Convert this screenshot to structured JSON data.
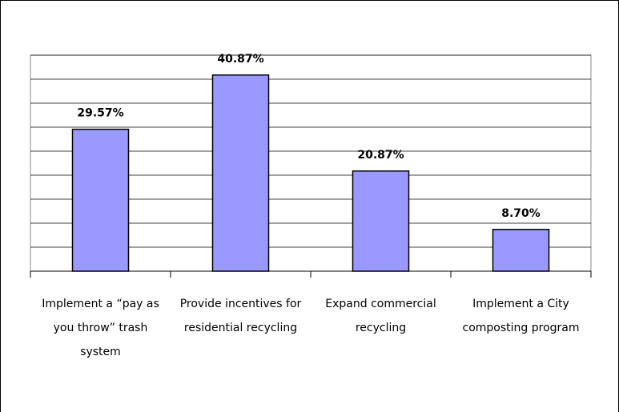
{
  "chart_data": {
    "type": "bar",
    "categories": [
      "Implement a “pay as you throw” trash system",
      "Provide incentives for residential recycling",
      "Expand commercial recycling",
      "Implement a City composting program"
    ],
    "values": [
      29.57,
      40.87,
      20.87,
      8.7
    ],
    "value_labels": [
      "29.57%",
      "40.87%",
      "20.87%",
      "8.70%"
    ],
    "color": "#9999ff",
    "ylim": [
      0,
      45
    ],
    "yticks": [
      0,
      5,
      10,
      15,
      20,
      25,
      30,
      35,
      40,
      45
    ],
    "grid": true
  }
}
